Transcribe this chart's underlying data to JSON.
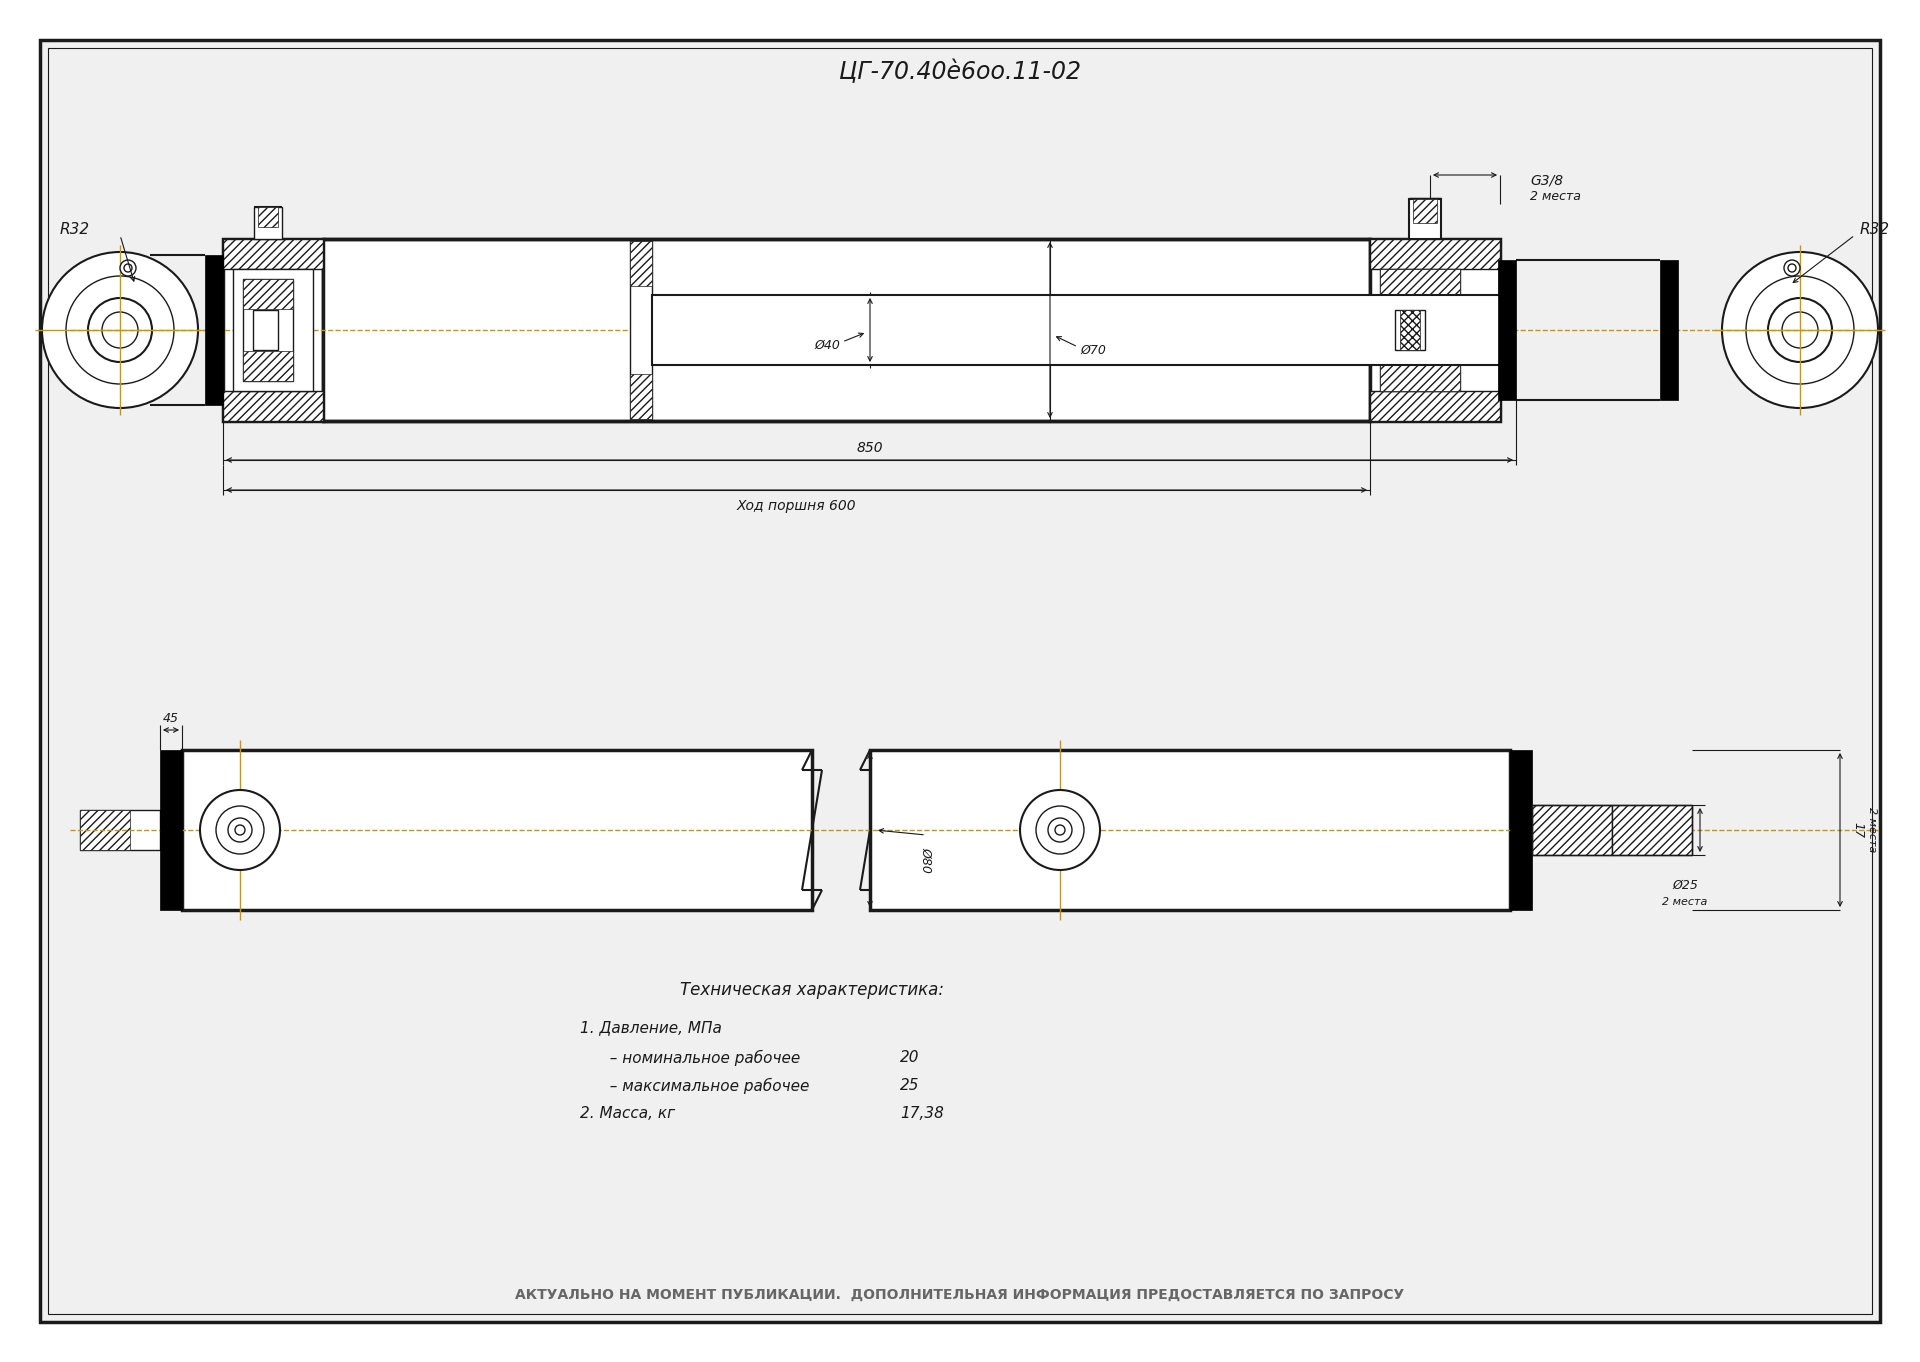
{
  "title": "ЦГ-70.40ѐ6оо.11-02",
  "bg_color": "#ffffff",
  "line_color": "#1a1a1a",
  "centerline_color": "#c8960a",
  "title_fontsize": 17,
  "bottom_text": "АКТУАЛЬНО НА МОМЕНТ ПУБЛИКАЦИИ.  ДОПОЛНИТЕЛЬНАЯ ИНФОРМАЦИЯ ПРЕДОСТАВЛЯЕТСЯ ПО ЗАПРОСУ",
  "tech_title": "Техническая характеристика:",
  "tech_line1": "1. Давление, МПа",
  "tech_line2": "  – номинальное рабочее",
  "tech_val2": "20",
  "tech_line3": "  – максимальное рабочее",
  "tech_val3": "25",
  "tech_line4": "2. Масса, кг",
  "tech_val4": "17,38",
  "dim_d40": "Ø40",
  "dim_d70": "Ø70",
  "dim_d80": "Ø80",
  "dim_d25": "Ø25",
  "dim_r32": "R32",
  "dim_850": "850",
  "dim_stroke": "Ход поршня 600",
  "dim_45": "45",
  "dim_17": "17",
  "dim_g38": "G3/8",
  "dim_2mesta": "2 места"
}
